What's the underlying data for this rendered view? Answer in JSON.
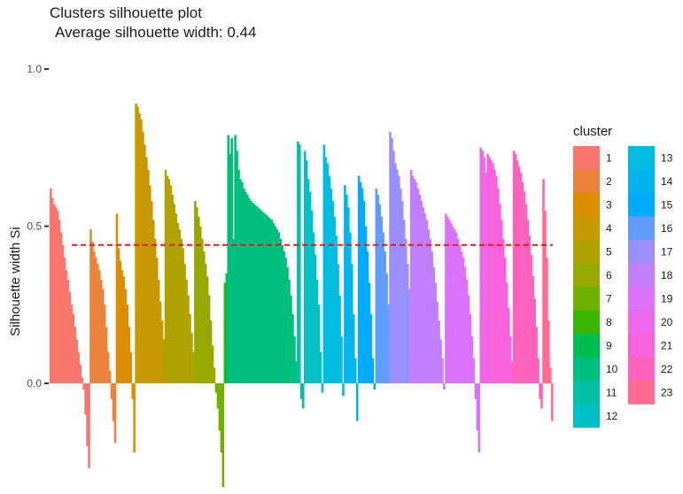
{
  "chart_data": {
    "type": "bar",
    "title": "Clusters silhouette plot",
    "subtitle": "Average silhouette width: 0.44",
    "xlabel": "",
    "ylabel": "Silhouette width Si",
    "ylim": [
      -0.33,
      1.0
    ],
    "yticks": [
      "0.0",
      "0.5",
      "1.0"
    ],
    "grid": false,
    "average_line": 0.44,
    "legend": {
      "title": "cluster",
      "placement": "right",
      "columns": 2
    },
    "series": [
      {
        "name": "1",
        "color": "#F8766D",
        "values": [
          0.62,
          0.59,
          0.57,
          0.56,
          0.55,
          0.52,
          0.48,
          0.44,
          0.4,
          0.36,
          0.33,
          0.29,
          0.25,
          0.22,
          0.18,
          0.14,
          0.1,
          0.06,
          0.02,
          -0.02,
          -0.1,
          -0.2,
          -0.27
        ]
      },
      {
        "name": "2",
        "color": "#EC823C",
        "values": [
          0.49,
          0.45,
          0.42,
          0.4,
          0.38,
          0.36,
          0.33,
          0.3,
          0.25,
          0.18,
          0.1,
          0.04,
          -0.05,
          -0.12,
          -0.19
        ]
      },
      {
        "name": "3",
        "color": "#DD8D00",
        "values": [
          0.54,
          0.43,
          0.39,
          0.36,
          0.34,
          0.3,
          0.25,
          0.18,
          0.1,
          -0.05,
          -0.22
        ]
      },
      {
        "name": "4",
        "color": "#C79800",
        "values": [
          0.89,
          0.88,
          0.86,
          0.84,
          0.8,
          0.76,
          0.72,
          0.68,
          0.63,
          0.58,
          0.52,
          0.46,
          0.4,
          0.33,
          0.26,
          0.2,
          0.14
        ]
      },
      {
        "name": "5",
        "color": "#B0A200",
        "values": [
          0.68,
          0.66,
          0.65,
          0.63,
          0.6,
          0.57,
          0.54,
          0.51,
          0.49,
          0.46,
          0.43,
          0.38,
          0.33,
          0.28,
          0.22,
          0.16,
          0.1
        ]
      },
      {
        "name": "6",
        "color": "#96A900",
        "values": [
          0.58,
          0.56,
          0.53,
          0.5,
          0.46,
          0.42,
          0.38,
          0.34,
          0.28,
          0.2,
          0.12,
          0.05
        ]
      },
      {
        "name": "7",
        "color": "#72B000",
        "values": [
          -0.03,
          -0.08,
          -0.15,
          -0.22,
          -0.33
        ]
      },
      {
        "name": "8",
        "color": "#39B600",
        "values": [
          0.32
        ]
      },
      {
        "name": "9",
        "color": "#00BB4E",
        "values": [
          0.35
        ]
      },
      {
        "name": "10",
        "color": "#00BF7D",
        "values": [
          0.79,
          0.73,
          0.78,
          0.46,
          0.79,
          0.74,
          0.68,
          0.65,
          0.64,
          0.62,
          0.61,
          0.6,
          0.59,
          0.58,
          0.575,
          0.57,
          0.565,
          0.56,
          0.555,
          0.55,
          0.545,
          0.54,
          0.535,
          0.53,
          0.525,
          0.52,
          0.51,
          0.5,
          0.49,
          0.48,
          0.46,
          0.44,
          0.42,
          0.4,
          0.37,
          0.33,
          0.28,
          0.22,
          0.15,
          0.07
        ]
      },
      {
        "name": "11",
        "color": "#00C1A3",
        "values": [
          0.77,
          0.76,
          -0.05,
          -0.08
        ]
      },
      {
        "name": "12",
        "color": "#00C0C6",
        "values": [
          0.74,
          0.71,
          0.65,
          0.61,
          0.55,
          0.48,
          0.41,
          0.33,
          0.25,
          0.1,
          -0.03
        ]
      },
      {
        "name": "13",
        "color": "#00BCE1",
        "values": [
          0.76,
          0.72,
          0.7,
          0.66,
          0.62,
          0.58,
          0.53,
          0.47,
          0.38,
          0.28,
          0.15,
          -0.04
        ]
      },
      {
        "name": "14",
        "color": "#00B5EE",
        "values": [
          0.63,
          0.6,
          0.56,
          0.48,
          0.38,
          0.22,
          0.08,
          -0.12
        ]
      },
      {
        "name": "15",
        "color": "#00ABFD",
        "values": [
          0.66,
          0.64,
          0.62,
          0.58,
          0.5,
          0.42,
          0.32,
          0.22,
          0.08,
          -0.02
        ]
      },
      {
        "name": "16",
        "color": "#619CFF",
        "values": [
          0.62,
          0.6,
          0.57,
          0.53,
          0.48,
          0.42,
          0.35,
          0.25
        ]
      },
      {
        "name": "17",
        "color": "#9B8FFF",
        "values": [
          0.8,
          0.78,
          0.74,
          0.7,
          0.68,
          0.66,
          0.62,
          0.58,
          0.52,
          0.46,
          0.38,
          0.3
        ]
      },
      {
        "name": "18",
        "color": "#C17FFF",
        "values": [
          0.68,
          0.66,
          0.65,
          0.64,
          0.62,
          0.6,
          0.58,
          0.56,
          0.54,
          0.52,
          0.49,
          0.46,
          0.42,
          0.37,
          0.32,
          0.26,
          0.2,
          0.14,
          0.08,
          -0.02
        ]
      },
      {
        "name": "19",
        "color": "#DB72FB",
        "values": [
          0.54,
          0.53,
          0.52,
          0.51,
          0.5,
          0.49,
          0.48,
          0.46,
          0.44,
          0.42,
          0.4,
          0.37,
          0.33,
          0.28,
          0.22,
          0.15,
          0.08,
          -0.05,
          -0.15,
          -0.22
        ]
      },
      {
        "name": "20",
        "color": "#ED68ED",
        "values": [
          0.75,
          0.74,
          0.72,
          0.67
        ]
      },
      {
        "name": "21",
        "color": "#F962DD",
        "values": [
          0.73,
          0.72,
          0.71,
          0.7,
          0.68,
          0.66,
          0.62,
          0.57,
          0.52,
          0.46,
          0.4,
          0.32,
          0.24,
          0.15,
          0.07
        ]
      },
      {
        "name": "22",
        "color": "#FF62BC",
        "values": [
          0.74,
          0.73,
          0.71,
          0.69,
          0.67,
          0.64,
          0.61,
          0.57,
          0.52,
          0.47,
          0.41,
          0.34,
          0.27,
          0.18,
          0.08,
          -0.05,
          -0.08
        ]
      },
      {
        "name": "23",
        "color": "#FF6C90",
        "values": [
          0.65,
          0.55,
          0.4,
          0.2,
          0.05,
          -0.12
        ]
      }
    ]
  }
}
